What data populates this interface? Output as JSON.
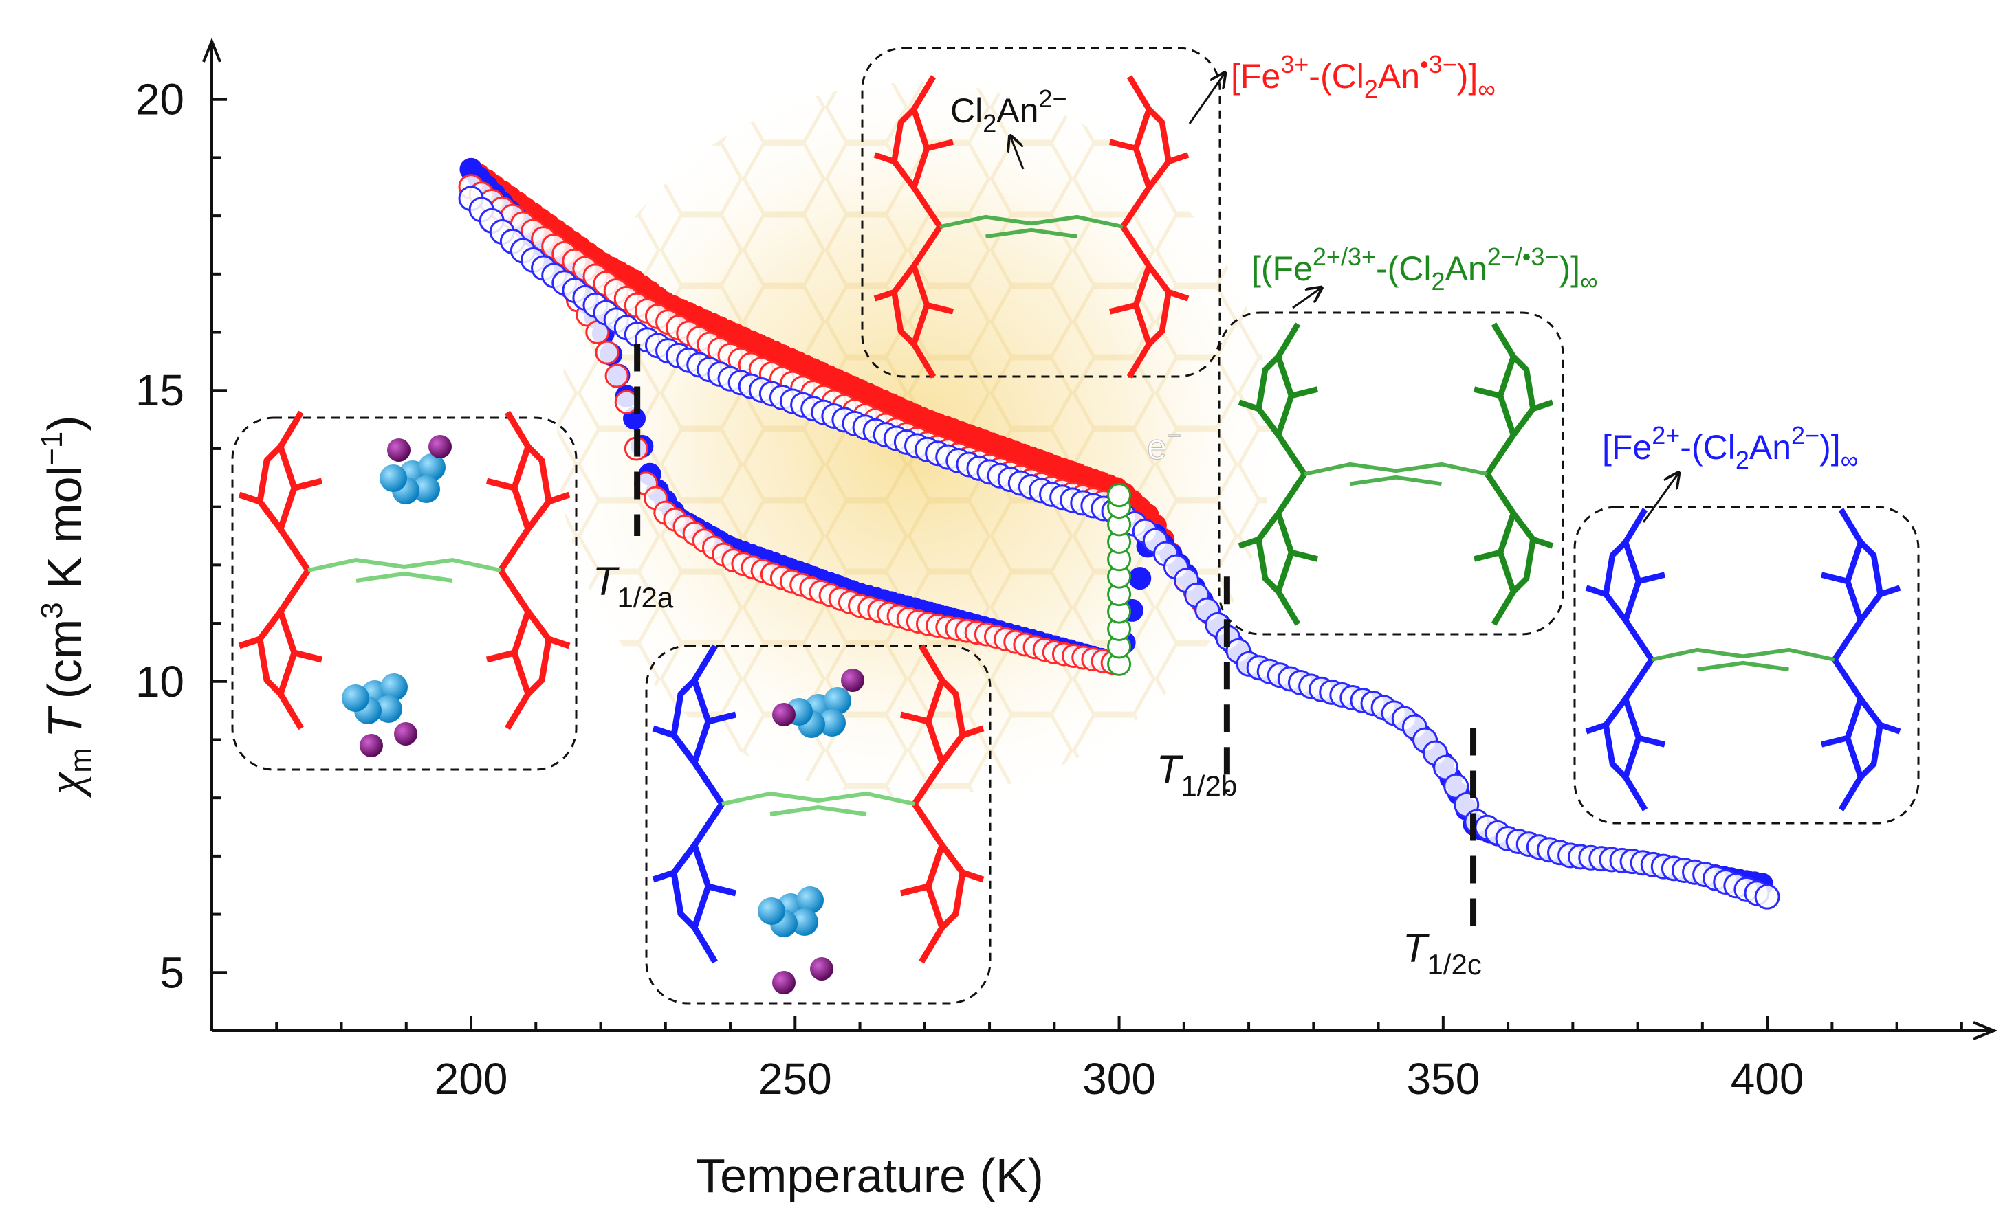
{
  "chart_data": {
    "type": "scatter",
    "xlabel": "Temperature (K)",
    "ylabel_parts": {
      "chi": "χ",
      "m": "m",
      "T": "T",
      "unit_open": "(cm",
      "exp3": "3",
      "unit_mid": " K mol",
      "expm1": "−1",
      "unit_close": ")"
    },
    "xlim": [
      160,
      435
    ],
    "ylim": [
      4,
      21
    ],
    "xticks": [
      200,
      250,
      300,
      350,
      400
    ],
    "yticks": [
      5,
      10,
      15,
      20
    ],
    "series": [
      {
        "role": "heating-red-filled",
        "color": "#ff1a1a",
        "x": [
          200,
          205,
          210,
          215,
          220,
          225,
          230,
          240,
          250,
          260,
          270,
          280,
          290,
          295,
          300,
          305,
          310,
          315,
          320,
          330,
          340,
          345,
          350,
          355,
          360,
          370,
          380,
          390,
          400
        ],
        "y": [
          18.8,
          18.4,
          18.0,
          17.6,
          17.2,
          16.9,
          16.5,
          16.0,
          15.5,
          15.0,
          14.5,
          14.1,
          13.7,
          13.5,
          13.3,
          12.8,
          11.8,
          11.0,
          10.3,
          9.9,
          9.6,
          9.3,
          8.6,
          7.5,
          7.3,
          7.0,
          6.9,
          6.7,
          6.5
        ]
      },
      {
        "role": "heating-blue-filled",
        "color": "#1a1aff",
        "x": [
          200,
          205,
          210,
          215,
          218,
          220,
          222,
          225,
          228,
          232,
          240,
          250,
          260,
          270,
          280,
          290,
          300,
          305,
          310,
          315,
          320,
          330,
          340,
          345,
          350,
          355,
          360,
          370,
          380,
          390,
          400
        ],
        "y": [
          18.8,
          18.2,
          17.6,
          17.0,
          16.5,
          16.1,
          15.5,
          14.6,
          13.4,
          12.8,
          12.3,
          11.9,
          11.5,
          11.2,
          10.9,
          10.6,
          10.3,
          12.6,
          11.9,
          11.0,
          10.3,
          9.9,
          9.6,
          9.3,
          8.6,
          7.5,
          7.3,
          7.0,
          6.9,
          6.7,
          6.5
        ]
      },
      {
        "role": "cooling-red-open",
        "color": "#ff2a2a",
        "x": [
          200,
          205,
          210,
          215,
          220,
          225,
          230,
          240,
          250,
          260,
          270,
          280,
          290,
          300
        ],
        "y": [
          18.5,
          18.1,
          17.7,
          17.3,
          16.9,
          16.5,
          16.2,
          15.6,
          15.1,
          14.6,
          14.1,
          13.7,
          13.3,
          13.0
        ]
      },
      {
        "role": "cooling-blue-open",
        "color": "#2a2aff",
        "x": [
          200,
          205,
          210,
          215,
          220,
          225,
          230,
          240,
          250,
          260,
          270,
          280,
          290,
          300,
          305,
          310,
          315,
          320,
          330,
          340,
          345,
          350,
          355,
          360,
          370,
          380,
          390,
          400
        ],
        "y": [
          18.3,
          17.7,
          17.2,
          16.8,
          16.4,
          16.0,
          15.7,
          15.2,
          14.8,
          14.4,
          14.0,
          13.6,
          13.2,
          12.9,
          12.5,
          11.8,
          11.0,
          10.3,
          9.9,
          9.6,
          9.3,
          8.6,
          7.6,
          7.3,
          7.0,
          6.9,
          6.7,
          6.3
        ]
      },
      {
        "role": "half-filled-step",
        "color": "#ff2a2a",
        "x": [
          215,
          218,
          220,
          222,
          224,
          225,
          227,
          230,
          235,
          240,
          250,
          260,
          270,
          280,
          290,
          300
        ],
        "y": [
          16.8,
          16.3,
          15.9,
          15.4,
          14.8,
          14.2,
          13.4,
          12.9,
          12.5,
          12.1,
          11.7,
          11.3,
          11.0,
          10.8,
          10.5,
          10.3
        ]
      },
      {
        "role": "vertical-green-open",
        "color": "#2aa02a",
        "x": [
          300,
          300,
          300,
          300,
          300,
          300,
          300,
          300,
          300,
          300,
          300
        ],
        "y": [
          10.3,
          10.6,
          10.9,
          11.2,
          11.5,
          11.8,
          12.1,
          12.4,
          12.7,
          13.0,
          13.2
        ]
      }
    ],
    "annotations": {
      "t_half_a": {
        "T": "T",
        "sub": "1/2a"
      },
      "t_half_b": {
        "T": "T",
        "sub": "1/2b"
      },
      "t_half_c": {
        "T": "T",
        "sub": "1/2c"
      },
      "electron": {
        "main": "e",
        "sup": "−"
      },
      "cl2an_top": {
        "main": "Cl",
        "sub": "2",
        "tail": "An",
        "sup": "2−"
      },
      "red_formula": {
        "a": "[Fe",
        "sup1": "3+",
        "b": "-(Cl",
        "sub": "2",
        "c": "An",
        "sup2": "•3−",
        "d": ")]",
        "inf": "∞"
      },
      "green_formula": {
        "a": "[(Fe",
        "sup1": "2+/3+",
        "b": "-(Cl",
        "sub": "2",
        "c": "An",
        "sup2": "2−/•3−",
        "d": ")]",
        "inf": "∞"
      },
      "blue_formula": {
        "a": "[Fe",
        "sup1": "2+",
        "b": "-(Cl",
        "sub": "2",
        "c": "An",
        "sup2": "2−",
        "d": ")]",
        "inf": "∞"
      }
    },
    "colors": {
      "red": "#ff1a1a",
      "blue": "#1a1aff",
      "green": "#1e8a1e",
      "cluster": "#1ea0e0",
      "ion": "#8a1a8a"
    }
  }
}
